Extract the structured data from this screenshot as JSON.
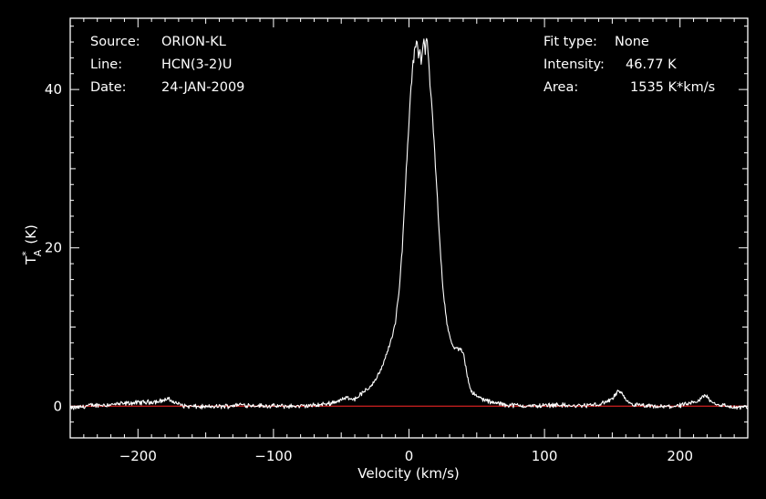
{
  "info_left": [
    {
      "key": "Source:",
      "value": "ORION-KL"
    },
    {
      "key": "Line:",
      "value": "HCN(3-2)U"
    },
    {
      "key": "Date:",
      "value": "24-JAN-2009"
    }
  ],
  "info_right": [
    {
      "key": "Fit type:",
      "value": "None"
    },
    {
      "key": "Intensity:",
      "value": "46.77 K"
    },
    {
      "key": "Area:",
      "value": "1535 K*km/s"
    }
  ],
  "chart_data": {
    "type": "line",
    "title": "",
    "xlabel": "Velocity (km/s)",
    "ylabel": "T",
    "ylabel_super": "*",
    "ylabel_sub": "A",
    "ylabel_unit": "(K)",
    "xlim": [
      -250,
      250
    ],
    "ylim": [
      -4,
      49
    ],
    "x_ticks": [
      -200,
      -100,
      0,
      100,
      200
    ],
    "x_tick_labels": [
      "−200",
      "−100",
      "0",
      "100",
      "200"
    ],
    "y_ticks": [
      0,
      20,
      40
    ],
    "y_tick_labels": [
      "0",
      "20",
      "40"
    ],
    "grid": false,
    "colors": {
      "background": "#000000",
      "spectrum": "#ffffff",
      "baseline": "#d02020",
      "axes": "#ffffff"
    },
    "baseline": {
      "y": 0,
      "color": "#d02020"
    },
    "series": [
      {
        "x": [
          -250,
          -235,
          -220,
          -205,
          -195,
          -185,
          -178,
          -172,
          -165,
          -150,
          -135,
          -125,
          -115,
          -100,
          -90,
          -80,
          -70,
          -60,
          -50,
          -45,
          -40,
          -35,
          -30,
          -25,
          -20,
          -15,
          -10,
          -7,
          -5,
          -3,
          -1,
          1,
          3,
          5,
          6,
          7,
          8,
          9,
          10,
          11,
          12,
          13,
          14,
          15,
          17,
          19,
          21,
          23,
          25,
          28,
          31,
          34,
          37,
          40,
          42,
          44,
          46,
          48,
          50,
          53,
          56,
          60,
          65,
          70,
          80,
          90,
          100,
          110,
          120,
          130,
          140,
          145,
          150,
          153,
          155,
          157,
          160,
          165,
          175,
          185,
          195,
          205,
          212,
          216,
          218,
          220,
          223,
          228,
          235,
          242,
          250
        ],
        "y": [
          -0.3,
          0.1,
          0.2,
          0.4,
          0.5,
          0.6,
          0.9,
          0.4,
          0.0,
          -0.1,
          0.0,
          0.2,
          0.1,
          0.0,
          0.0,
          0.0,
          0.1,
          0.3,
          0.8,
          1.1,
          0.9,
          1.6,
          2.2,
          3.3,
          4.8,
          7.3,
          10.5,
          15.0,
          20.0,
          26.5,
          33.0,
          39.0,
          43.5,
          45.5,
          46.5,
          44.0,
          45.5,
          43.5,
          45.0,
          46.5,
          45.0,
          46.77,
          44.5,
          42.0,
          37.5,
          32.0,
          26.0,
          20.0,
          15.0,
          10.5,
          8.0,
          7.2,
          7.3,
          6.8,
          5.0,
          3.0,
          2.0,
          1.5,
          1.2,
          1.0,
          0.8,
          0.5,
          0.4,
          0.2,
          0.1,
          0.0,
          0.1,
          0.2,
          0.0,
          0.1,
          0.2,
          0.5,
          0.9,
          1.6,
          2.0,
          1.5,
          0.7,
          0.2,
          0.0,
          -0.1,
          0.0,
          0.2,
          0.5,
          1.0,
          1.4,
          1.2,
          0.6,
          0.2,
          0.0,
          -0.2,
          -0.1
        ]
      }
    ]
  }
}
